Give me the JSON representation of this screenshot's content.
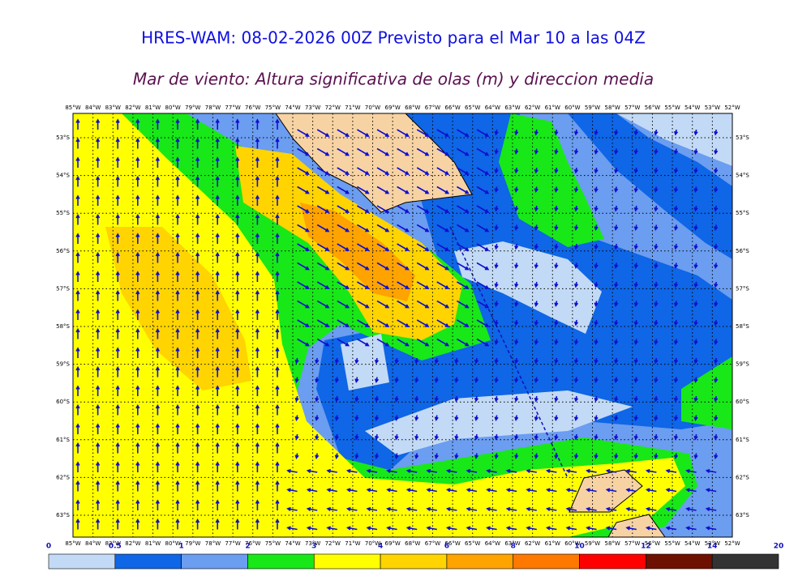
{
  "header": {
    "title": "HRES-WAM: 08-02-2026 00Z Previsto para el Mar 10 a las 04Z",
    "subtitle": "Mar de viento: Altura significativa de olas (m) y direccion media"
  },
  "map": {
    "longitudes": [
      "85°W",
      "84°W",
      "83°W",
      "82°W",
      "81°W",
      "80°W",
      "79°W",
      "78°W",
      "77°W",
      "76°W",
      "75°W",
      "74°W",
      "73°W",
      "72°W",
      "71°W",
      "70°W",
      "69°W",
      "68°W",
      "67°W",
      "66°W",
      "65°W",
      "64°W",
      "63°W",
      "62°W",
      "61°W",
      "60°W",
      "59°W",
      "58°W",
      "57°W",
      "56°W",
      "55°W",
      "54°W",
      "53°W",
      "52°W"
    ],
    "latitudes": [
      "53°S",
      "54°S",
      "55°S",
      "56°S",
      "57°S",
      "58°S",
      "59°S",
      "60°S",
      "61°S",
      "62°S",
      "63°S"
    ]
  },
  "legend": {
    "levels": [
      0,
      0.5,
      1,
      2,
      3,
      4,
      6,
      8,
      10,
      12,
      14,
      20
    ],
    "colors": [
      "#c2daf6",
      "#0f66e6",
      "#6b9df0",
      "#18e818",
      "#ffff00",
      "#ffd400",
      "#ffa300",
      "#ff7800",
      "#ff0000",
      "#6e1000",
      "#333333"
    ]
  }
}
